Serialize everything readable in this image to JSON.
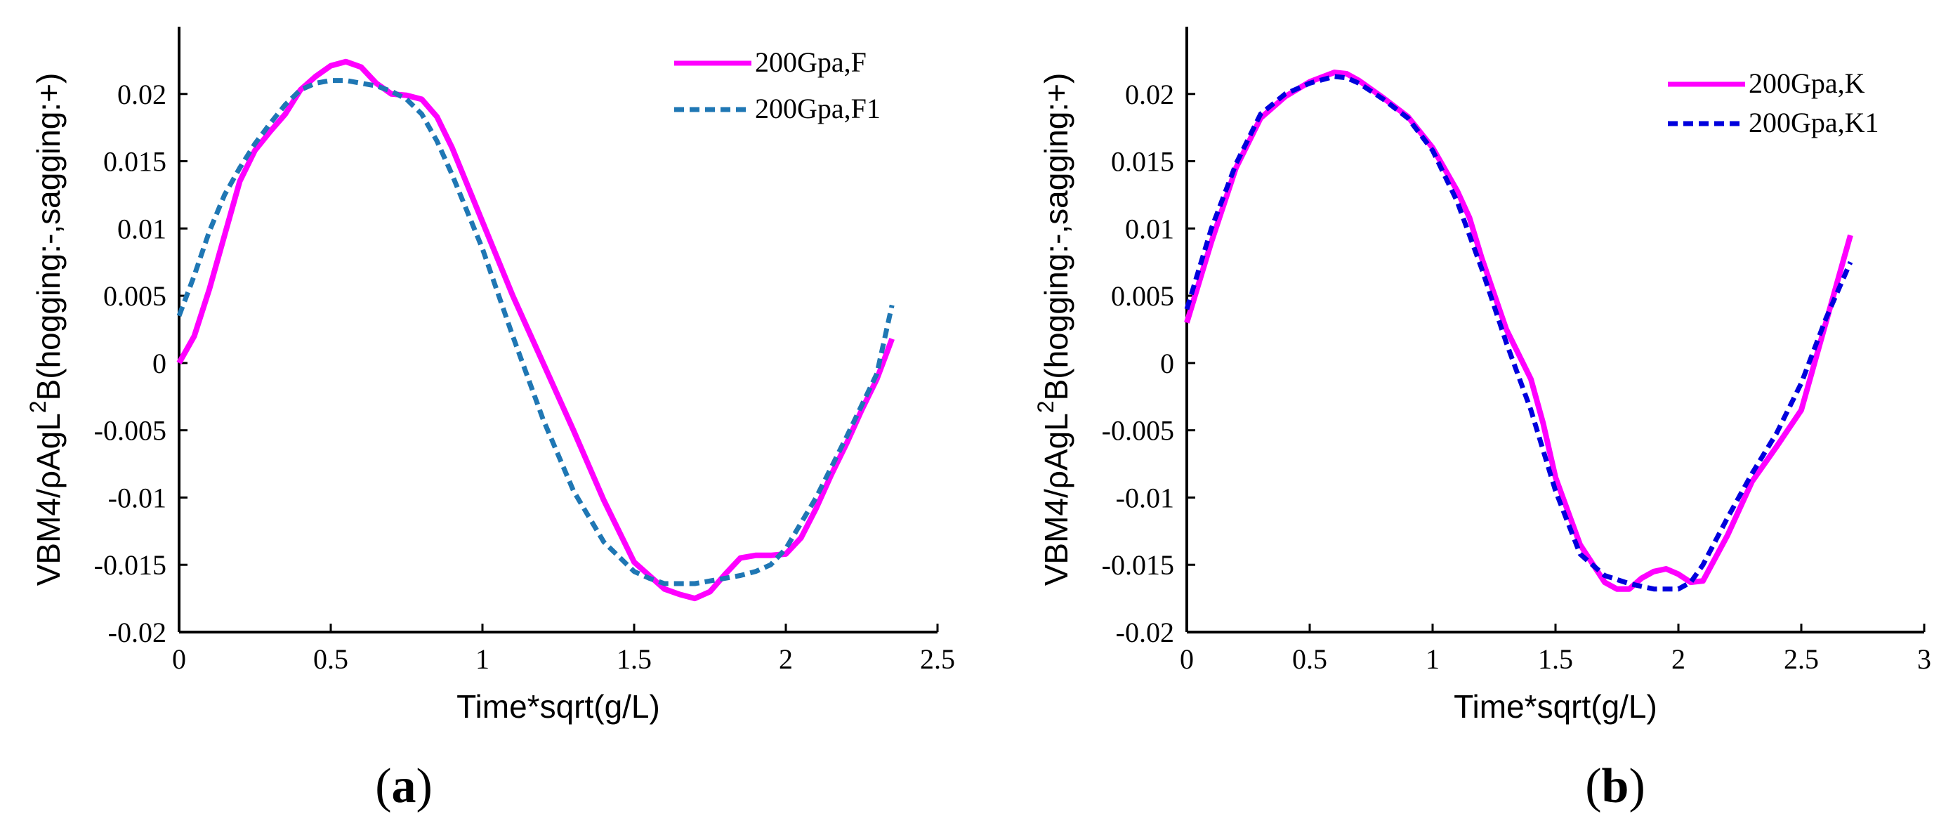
{
  "chart_data": [
    {
      "type": "line",
      "panel_label": "(a)",
      "panel_letter": "a",
      "xlabel": "Time*sqrt(g/L)",
      "ylabel_prefix": "VBM4/ρAgL",
      "ylabel_sup": "2",
      "ylabel_suffix": "B(hogging:-,sagging:+)",
      "xlim": [
        0,
        2.5
      ],
      "ylim": [
        -0.02,
        0.025
      ],
      "xticks": [
        0,
        0.5,
        1,
        1.5,
        2,
        2.5
      ],
      "xtick_labels": [
        "0",
        "0.5",
        "1",
        "1.5",
        "2",
        "2.5"
      ],
      "yticks": [
        -0.02,
        -0.015,
        -0.01,
        -0.005,
        0,
        0.005,
        0.01,
        0.015,
        0.02
      ],
      "ytick_labels": [
        "-0.02",
        "-0.015",
        "-0.01",
        "-0.005",
        "0",
        "0.005",
        "0.01",
        "0.015",
        "0.02"
      ],
      "legend_position": "top-right",
      "series": [
        {
          "name": "200Gpa,F",
          "color": "#ff00ff",
          "style": "solid",
          "x": [
            0,
            0.05,
            0.1,
            0.15,
            0.2,
            0.25,
            0.3,
            0.35,
            0.4,
            0.45,
            0.5,
            0.55,
            0.6,
            0.65,
            0.7,
            0.75,
            0.8,
            0.85,
            0.9,
            1.0,
            1.1,
            1.2,
            1.3,
            1.4,
            1.5,
            1.6,
            1.65,
            1.7,
            1.75,
            1.8,
            1.85,
            1.9,
            1.95,
            2.0,
            2.05,
            2.1,
            2.15,
            2.2,
            2.25,
            2.3,
            2.35
          ],
          "y": [
            0.0,
            0.002,
            0.0055,
            0.0095,
            0.0135,
            0.0158,
            0.0172,
            0.0185,
            0.0203,
            0.0213,
            0.0221,
            0.0224,
            0.022,
            0.0208,
            0.02,
            0.0199,
            0.0196,
            0.0183,
            0.016,
            0.0105,
            0.005,
            0.0,
            -0.005,
            -0.0102,
            -0.0148,
            -0.0168,
            -0.0172,
            -0.0175,
            -0.017,
            -0.0157,
            -0.0145,
            -0.0143,
            -0.0143,
            -0.0142,
            -0.013,
            -0.0108,
            -0.0083,
            -0.006,
            -0.0035,
            -0.0012,
            0.0018
          ]
        },
        {
          "name": "200Gpa,F1",
          "color": "#1f77b4",
          "style": "dashed",
          "x": [
            0,
            0.05,
            0.1,
            0.15,
            0.2,
            0.25,
            0.3,
            0.35,
            0.4,
            0.45,
            0.5,
            0.55,
            0.6,
            0.65,
            0.7,
            0.75,
            0.8,
            0.85,
            0.9,
            1.0,
            1.1,
            1.2,
            1.3,
            1.4,
            1.5,
            1.55,
            1.6,
            1.65,
            1.7,
            1.75,
            1.8,
            1.85,
            1.9,
            1.95,
            2.0,
            2.1,
            2.2,
            2.3,
            2.35
          ],
          "y": [
            0.0035,
            0.0065,
            0.0098,
            0.0125,
            0.0145,
            0.0163,
            0.0178,
            0.0192,
            0.0203,
            0.0208,
            0.021,
            0.021,
            0.0208,
            0.0206,
            0.0202,
            0.0196,
            0.0185,
            0.0165,
            0.014,
            0.0085,
            0.002,
            -0.0042,
            -0.0095,
            -0.0133,
            -0.0155,
            -0.016,
            -0.0164,
            -0.0164,
            -0.0164,
            -0.0162,
            -0.016,
            -0.0158,
            -0.0155,
            -0.015,
            -0.0138,
            -0.01,
            -0.0055,
            -0.0008,
            0.0043
          ]
        }
      ]
    },
    {
      "type": "line",
      "panel_label": "(b)",
      "panel_letter": "b",
      "xlabel": "Time*sqrt(g/L)",
      "ylabel_prefix": "VBM4/ρAgL",
      "ylabel_sup": "2",
      "ylabel_suffix": "B(hogging:-,sagging:+)",
      "xlim": [
        0,
        3
      ],
      "ylim": [
        -0.02,
        0.025
      ],
      "xticks": [
        0,
        0.5,
        1,
        1.5,
        2,
        2.5,
        3
      ],
      "xtick_labels": [
        "0",
        "0.5",
        "1",
        "1.5",
        "2",
        "2.5",
        "3"
      ],
      "yticks": [
        -0.02,
        -0.015,
        -0.01,
        -0.005,
        0,
        0.005,
        0.01,
        0.015,
        0.02
      ],
      "ytick_labels": [
        "-0.02",
        "-0.015",
        "-0.01",
        "-0.005",
        "0",
        "0.005",
        "0.01",
        "0.015",
        "0.02"
      ],
      "legend_position": "top-right",
      "series": [
        {
          "name": "200Gpa,K",
          "color": "#ff00ff",
          "style": "solid",
          "x": [
            0,
            0.1,
            0.2,
            0.3,
            0.4,
            0.5,
            0.6,
            0.65,
            0.7,
            0.8,
            0.9,
            1.0,
            1.1,
            1.15,
            1.2,
            1.3,
            1.4,
            1.45,
            1.5,
            1.6,
            1.7,
            1.75,
            1.8,
            1.85,
            1.9,
            1.95,
            2.0,
            2.05,
            2.1,
            2.2,
            2.3,
            2.4,
            2.5,
            2.6,
            2.7
          ],
          "y": [
            0.003,
            0.009,
            0.0145,
            0.0182,
            0.0198,
            0.0209,
            0.0216,
            0.0215,
            0.021,
            0.0197,
            0.0183,
            0.016,
            0.0128,
            0.0108,
            0.0078,
            0.0025,
            -0.0012,
            -0.0045,
            -0.0085,
            -0.0135,
            -0.0163,
            -0.0168,
            -0.0168,
            -0.016,
            -0.0155,
            -0.0153,
            -0.0157,
            -0.0163,
            -0.0162,
            -0.0128,
            -0.0088,
            -0.0062,
            -0.0035,
            0.003,
            0.0095
          ]
        },
        {
          "name": "200Gpa,K1",
          "color": "#0000dd",
          "style": "dashed",
          "x": [
            0,
            0.1,
            0.2,
            0.3,
            0.4,
            0.5,
            0.6,
            0.65,
            0.7,
            0.8,
            0.9,
            1.0,
            1.1,
            1.2,
            1.3,
            1.4,
            1.5,
            1.6,
            1.7,
            1.8,
            1.85,
            1.9,
            1.95,
            2.0,
            2.05,
            2.1,
            2.2,
            2.3,
            2.4,
            2.5,
            2.6,
            2.7
          ],
          "y": [
            0.004,
            0.01,
            0.0148,
            0.0185,
            0.02,
            0.0208,
            0.0213,
            0.0212,
            0.0208,
            0.0196,
            0.0182,
            0.0158,
            0.012,
            0.007,
            0.0015,
            -0.0035,
            -0.0095,
            -0.0142,
            -0.0158,
            -0.0164,
            -0.0166,
            -0.0168,
            -0.0168,
            -0.0168,
            -0.0163,
            -0.015,
            -0.0115,
            -0.0082,
            -0.0052,
            -0.0015,
            0.0033,
            0.0075
          ]
        }
      ]
    }
  ]
}
